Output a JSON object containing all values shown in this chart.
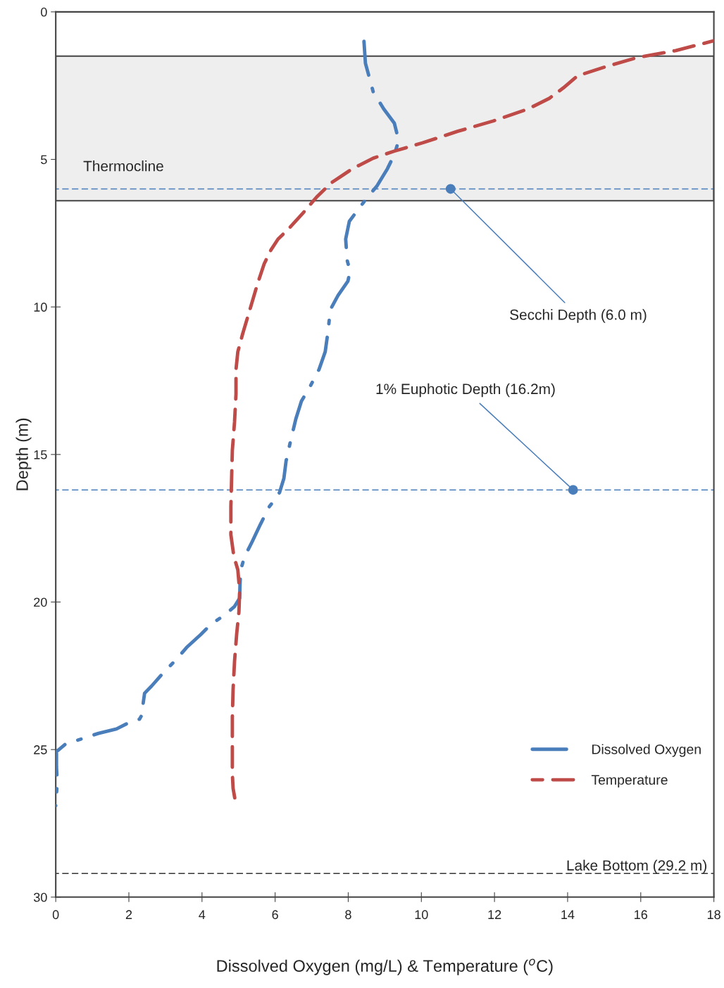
{
  "chart_data": {
    "type": "line",
    "xlabel": "Dissolved Oxygen (mg/L) & Temperature ($^{o}$C)",
    "ylabel": "Depth (m)",
    "xlim": [
      0,
      18
    ],
    "xticks": [
      0,
      2,
      4,
      6,
      8,
      10,
      12,
      14,
      16,
      18
    ],
    "ylim": [
      30,
      0
    ],
    "yticks": [
      0,
      5,
      10,
      15,
      20,
      25,
      30
    ],
    "grid": false,
    "legend": "bottom right",
    "series": [
      {
        "name": "Dissolved Oxygen",
        "color": "#4a7ebb",
        "line_style": "dashdot",
        "x": [
          8.43,
          8.47,
          8.68,
          8.97,
          9.26,
          9.38,
          9.26,
          9.07,
          8.78,
          8.49,
          8.3,
          8.03,
          7.93,
          7.97,
          8.05,
          7.99,
          7.72,
          7.51,
          7.45,
          7.37,
          7.2,
          6.95,
          6.72,
          6.57,
          6.43,
          6.3,
          6.24,
          6.12,
          5.99,
          5.84,
          5.6,
          5.37,
          5.16,
          5.06,
          5.04,
          5.03,
          4.89,
          4.6,
          4.25,
          3.96,
          3.58,
          3.25,
          2.96,
          2.62,
          2.43,
          2.39,
          2.37,
          2.29,
          2.0,
          1.66,
          1.17,
          0.6,
          0.25,
          0.02,
          0.02,
          0.04,
          0.02,
          0.0
        ],
        "values": [
          1.0,
          1.74,
          2.7,
          3.29,
          3.77,
          4.36,
          4.84,
          5.32,
          5.91,
          6.34,
          6.65,
          7.1,
          7.7,
          8.42,
          8.78,
          9.13,
          9.61,
          10.09,
          10.8,
          11.52,
          12.12,
          12.71,
          13.19,
          13.78,
          14.5,
          15.22,
          15.81,
          16.29,
          16.53,
          16.77,
          17.36,
          17.96,
          18.48,
          18.91,
          19.39,
          19.87,
          20.15,
          20.46,
          20.75,
          21.11,
          21.54,
          22.01,
          22.37,
          22.85,
          23.09,
          23.44,
          23.8,
          23.97,
          24.09,
          24.3,
          24.45,
          24.68,
          24.83,
          25.07,
          25.59,
          26.07,
          26.54,
          26.9
        ]
      },
      {
        "name": "Temperature",
        "color": "#be4b48",
        "line_style": "dashed",
        "x": [
          18.0,
          16.96,
          15.9,
          15.04,
          14.27,
          13.88,
          13.5,
          12.92,
          11.96,
          10.99,
          10.03,
          9.26,
          8.68,
          8.11,
          7.53,
          7.14,
          6.76,
          6.37,
          6.08,
          5.89,
          5.7,
          5.51,
          5.31,
          5.11,
          4.98,
          4.93,
          4.93,
          4.89,
          4.83,
          4.81,
          4.79,
          4.79,
          4.87,
          4.98,
          5.03,
          5.01,
          4.95,
          4.89,
          4.85,
          4.83,
          4.83,
          4.83,
          4.85,
          4.91
        ],
        "values": [
          0.98,
          1.31,
          1.55,
          1.86,
          2.17,
          2.58,
          2.93,
          3.29,
          3.7,
          4.05,
          4.44,
          4.72,
          4.96,
          5.32,
          5.8,
          6.27,
          6.82,
          7.35,
          7.7,
          8.06,
          8.54,
          9.25,
          10.09,
          10.92,
          11.52,
          12.12,
          12.95,
          13.9,
          14.86,
          15.81,
          16.77,
          17.72,
          18.44,
          18.91,
          19.63,
          20.34,
          21.06,
          22.01,
          22.97,
          23.92,
          24.87,
          25.83,
          26.31,
          26.74
        ]
      }
    ],
    "bands": [
      {
        "axis": "y",
        "from": 1.5,
        "to": 6.4,
        "label": "Thermocline",
        "color": "#eeeeee"
      }
    ],
    "ref_lines": [
      {
        "axis": "y",
        "value": 6.0,
        "color": "#4a7ebb",
        "line_style": "dashed"
      },
      {
        "axis": "y",
        "value": 16.2,
        "color": "#4a7ebb",
        "line_style": "dashed"
      },
      {
        "axis": "y",
        "value": 29.2,
        "label": "Lake Bottom (29.2 m)",
        "color": "#333333",
        "line_style": "dashed"
      }
    ],
    "annotations": [
      {
        "text": "Secchi Depth (6.0 m)",
        "x": 10.8,
        "y": 6.0
      },
      {
        "text": "1% Euphotic Depth (16.2m)",
        "x": 14.15,
        "y": 16.2
      }
    ]
  }
}
